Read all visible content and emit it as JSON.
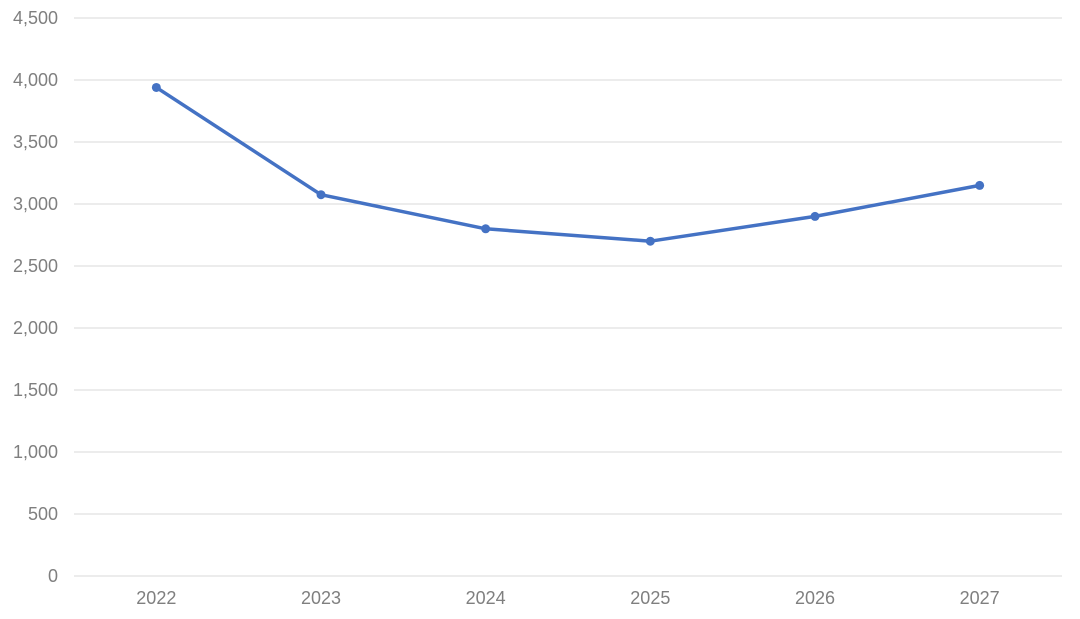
{
  "chart_data": {
    "type": "line",
    "title": "",
    "xlabel": "",
    "ylabel": "",
    "categories": [
      "2022",
      "2023",
      "2024",
      "2025",
      "2026",
      "2027"
    ],
    "series": [
      {
        "values": [
          3940,
          3075,
          2800,
          2700,
          2900,
          3150
        ],
        "color": "#4472c4",
        "markers": true
      }
    ],
    "ylim": [
      0,
      4500
    ],
    "y_ticks": [
      0,
      500,
      1000,
      1500,
      2000,
      2500,
      3000,
      3500,
      4000,
      4500
    ],
    "y_tick_labels": [
      "0",
      "500",
      "1,000",
      "1,500",
      "2,000",
      "2,500",
      "3,000",
      "3,500",
      "4,000",
      "4,500"
    ],
    "grid": true,
    "legend": "none"
  }
}
